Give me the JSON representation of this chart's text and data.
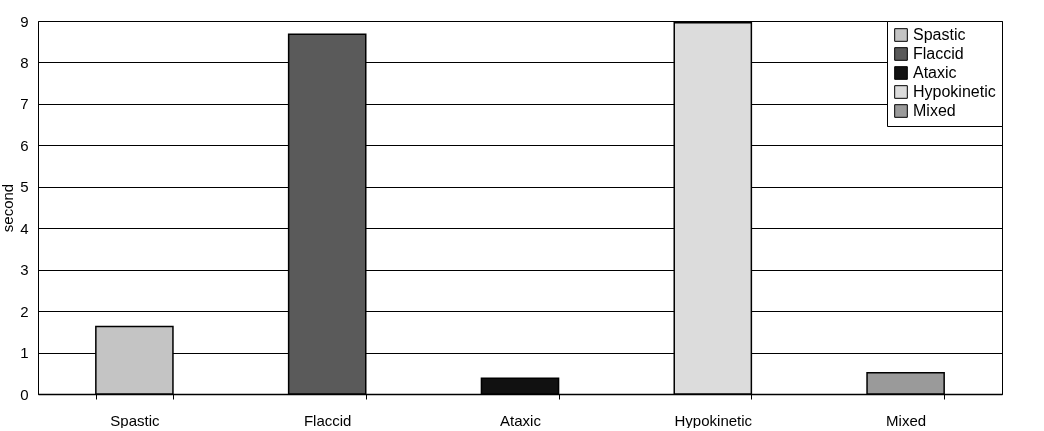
{
  "chart_data": {
    "type": "bar",
    "ylabel": "second",
    "categories": [
      "Spastic",
      "Flaccid",
      "Ataxic",
      "Hypokinetic",
      "Mixed"
    ],
    "series": [
      {
        "name": "Spastic",
        "color": "#c4c4c4",
        "values": [
          1.63,
          null,
          null,
          null,
          null
        ]
      },
      {
        "name": "Flaccid",
        "color": "#5a5a5a",
        "values": [
          null,
          8.68,
          null,
          null,
          null
        ]
      },
      {
        "name": "Ataxic",
        "color": "#111111",
        "values": [
          null,
          null,
          0.38,
          null,
          null
        ]
      },
      {
        "name": "Hypokinetic",
        "color": "#dcdcdc",
        "values": [
          null,
          null,
          null,
          8.96,
          null
        ]
      },
      {
        "name": "Mixed",
        "color": "#9a9a9a",
        "values": [
          null,
          null,
          null,
          null,
          0.51
        ]
      }
    ],
    "ylim": [
      0,
      9
    ],
    "yticks": [
      0,
      1,
      2,
      3,
      4,
      5,
      6,
      7,
      8,
      9
    ],
    "grid": "y",
    "legend": "top right"
  }
}
